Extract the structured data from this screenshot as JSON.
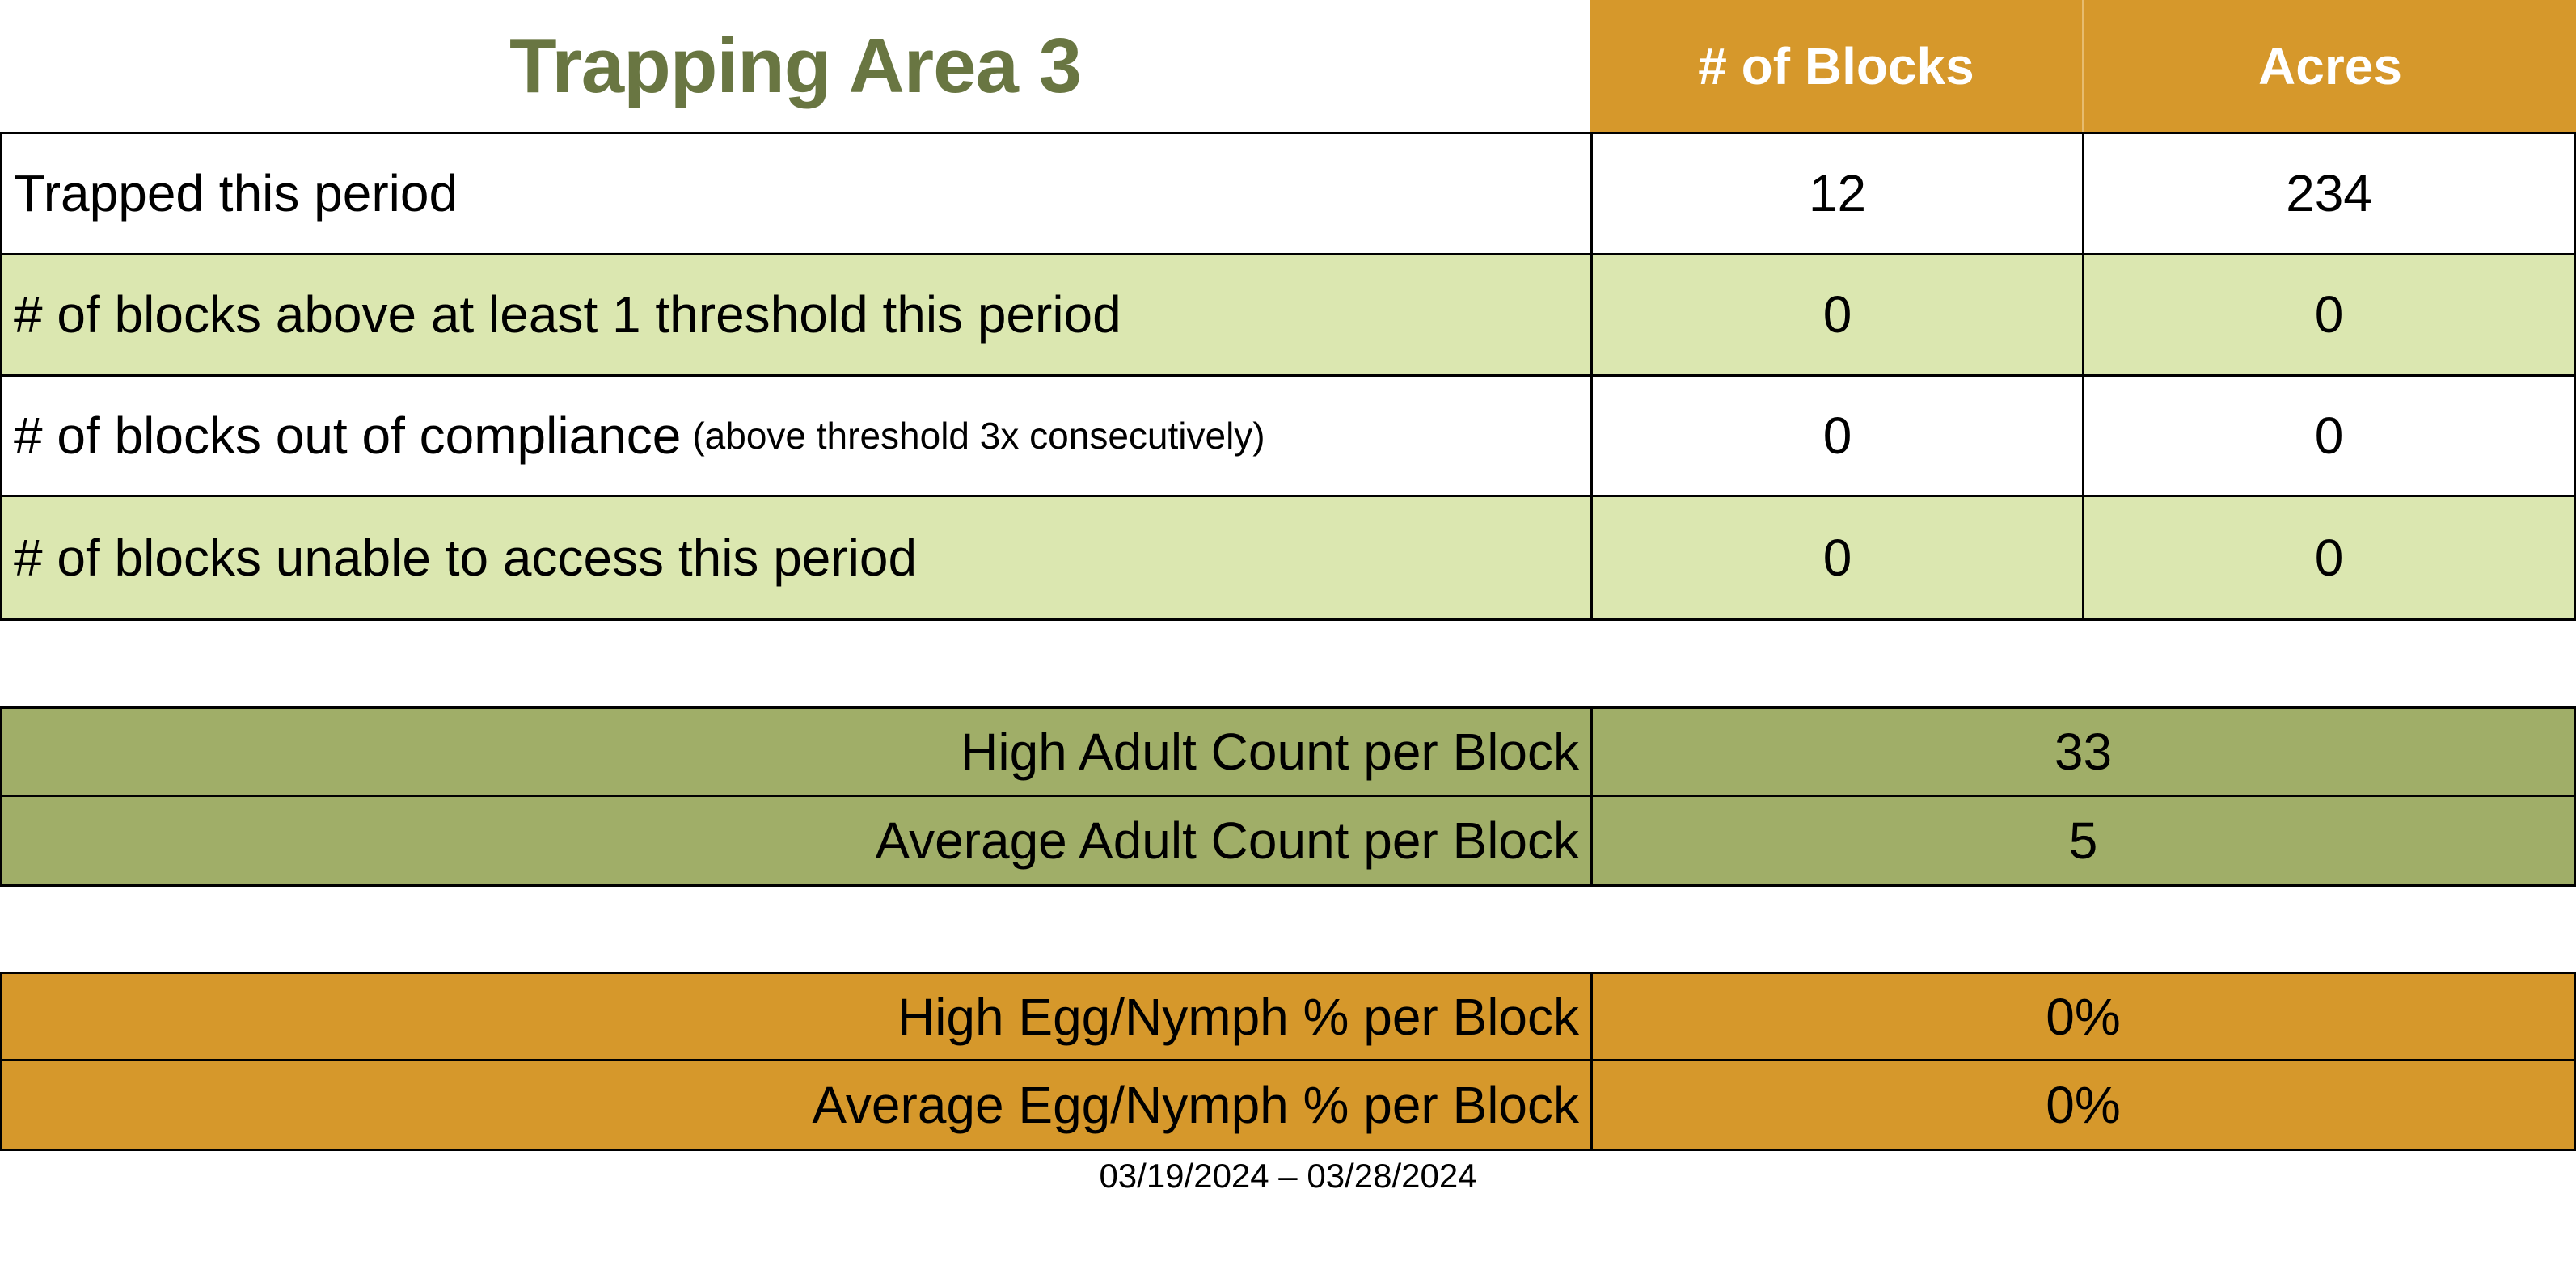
{
  "title": "Trapping Area 3",
  "colors": {
    "header_orange": "#D6982B",
    "light_green_row": "#DBE7B0",
    "olive_table": "#A0AE68",
    "title_green": "#697642",
    "header_text": "#ffffff",
    "border": "#000000"
  },
  "main_table": {
    "column_headers": [
      "# of Blocks",
      "Acres"
    ],
    "rows": [
      {
        "label": "Trapped this period",
        "blocks": "12",
        "acres": "234"
      },
      {
        "label": "# of blocks above at least 1 threshold this period",
        "blocks": "0",
        "acres": "0"
      },
      {
        "label": "# of blocks out of compliance",
        "note": "(above threshold 3x consecutively)",
        "blocks": "0",
        "acres": "0"
      },
      {
        "label": "# of blocks unable to access this period",
        "blocks": "0",
        "acres": "0"
      }
    ]
  },
  "adult_count_table": {
    "rows": [
      {
        "label": "High Adult Count per Block",
        "value": "33"
      },
      {
        "label": "Average Adult Count per Block",
        "value": "5"
      }
    ]
  },
  "egg_nymph_table": {
    "rows": [
      {
        "label": "High Egg/Nymph % per Block",
        "value": "0%"
      },
      {
        "label": "Average Egg/Nymph % per Block",
        "value": "0%"
      }
    ]
  },
  "footer": {
    "date_range": "03/19/2024 – 03/28/2024"
  }
}
